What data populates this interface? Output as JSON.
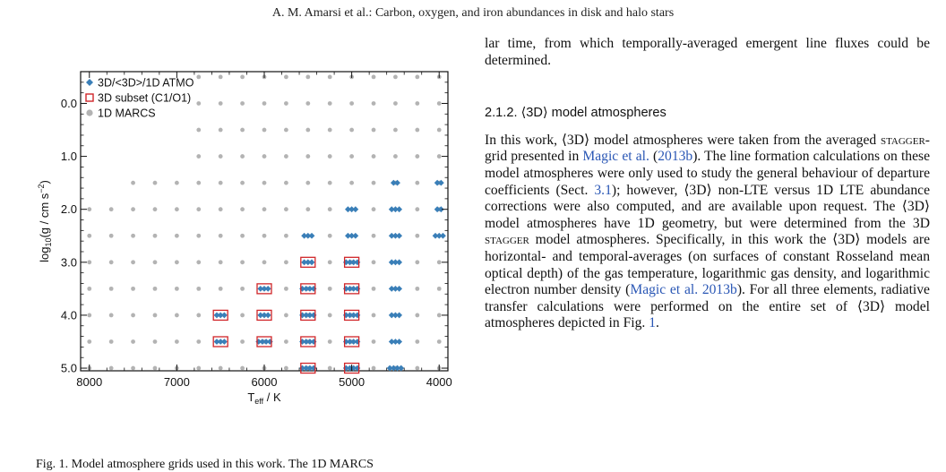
{
  "header": {
    "running_title": "A. M. Amarsi et al.: Carbon, oxygen, and iron abundances in disk and halo stars"
  },
  "colors": {
    "atmo": "#3a7fb8",
    "subset": "#d0262a",
    "marcs": "#b3b3b3"
  },
  "figure": {
    "caption_fragment": "Fig. 1. Model atmosphere grids used in this work. The 1D MARCS"
  },
  "chart_data": {
    "type": "scatter",
    "xlabel": "Teff / K",
    "ylabel": "log10(g / cm s^-2)",
    "xlim": [
      8100,
      3900
    ],
    "ylim": [
      5.05,
      -0.6
    ],
    "x_reversed": true,
    "y_reversed": true,
    "x_ticks": [
      8000,
      7000,
      6000,
      5000,
      4000
    ],
    "y_ticks": [
      0.0,
      1.0,
      2.0,
      3.0,
      4.0,
      5.0
    ],
    "x_tick_labels": [
      "8000",
      "7000",
      "6000",
      "5000",
      "4000"
    ],
    "y_tick_labels": [
      "0.0",
      "1.0",
      "2.0",
      "3.0",
      "4.0",
      "5.0"
    ],
    "legend_position": "top-left",
    "legend": [
      {
        "label": "3D/<3D>/1D ATMO",
        "marker": "diamond"
      },
      {
        "label": "3D subset (C1/O1)",
        "marker": "square"
      },
      {
        "label": "1D MARCS",
        "marker": "circle"
      }
    ],
    "series": [
      {
        "name": "1D MARCS",
        "teff_grid": [
          8000,
          7750,
          7500,
          7250,
          7000,
          6750,
          6500,
          6250,
          6000,
          5750,
          5500,
          5250,
          5000,
          4750,
          4500,
          4250,
          4000
        ],
        "logg_grid": [
          -0.5,
          0.0,
          0.5,
          1.0,
          1.5,
          2.0,
          2.5,
          3.0,
          3.5,
          4.0,
          4.5,
          5.0
        ],
        "teff_max_by_logg": [
          6750,
          6750,
          6750,
          6750,
          7500,
          8000,
          8000,
          8000,
          8000,
          8000,
          8000,
          8000
        ]
      },
      {
        "name": "3D/<3D>/1D ATMO",
        "groups": [
          {
            "teff": 6500,
            "logg": 4.0,
            "n": 3
          },
          {
            "teff": 6500,
            "logg": 4.5,
            "n": 3
          },
          {
            "teff": 6000,
            "logg": 3.5,
            "n": 3
          },
          {
            "teff": 6000,
            "logg": 4.0,
            "n": 3
          },
          {
            "teff": 6000,
            "logg": 4.5,
            "n": 4
          },
          {
            "teff": 5500,
            "logg": 2.5,
            "n": 3
          },
          {
            "teff": 5500,
            "logg": 3.0,
            "n": 3
          },
          {
            "teff": 5500,
            "logg": 3.5,
            "n": 4
          },
          {
            "teff": 5500,
            "logg": 4.0,
            "n": 4
          },
          {
            "teff": 5500,
            "logg": 4.5,
            "n": 4
          },
          {
            "teff": 5500,
            "logg": 5.0,
            "n": 4
          },
          {
            "teff": 5000,
            "logg": 2.0,
            "n": 3
          },
          {
            "teff": 5000,
            "logg": 2.5,
            "n": 3
          },
          {
            "teff": 5000,
            "logg": 3.0,
            "n": 4
          },
          {
            "teff": 5000,
            "logg": 3.5,
            "n": 4
          },
          {
            "teff": 5000,
            "logg": 4.0,
            "n": 4
          },
          {
            "teff": 5000,
            "logg": 4.5,
            "n": 4
          },
          {
            "teff": 5000,
            "logg": 5.0,
            "n": 4
          },
          {
            "teff": 4500,
            "logg": 1.5,
            "n": 2
          },
          {
            "teff": 4500,
            "logg": 2.0,
            "n": 3
          },
          {
            "teff": 4500,
            "logg": 2.5,
            "n": 3
          },
          {
            "teff": 4500,
            "logg": 3.0,
            "n": 3
          },
          {
            "teff": 4500,
            "logg": 3.5,
            "n": 3
          },
          {
            "teff": 4500,
            "logg": 4.0,
            "n": 3
          },
          {
            "teff": 4500,
            "logg": 4.5,
            "n": 3
          },
          {
            "teff": 4500,
            "logg": 5.0,
            "n": 4
          },
          {
            "teff": 4000,
            "logg": 1.5,
            "n": 2
          },
          {
            "teff": 4000,
            "logg": 2.0,
            "n": 2
          },
          {
            "teff": 4000,
            "logg": 2.5,
            "n": 3
          }
        ]
      },
      {
        "name": "3D subset (C1/O1)",
        "points": [
          {
            "teff": 6500,
            "logg": 4.0
          },
          {
            "teff": 6500,
            "logg": 4.5
          },
          {
            "teff": 6000,
            "logg": 3.5
          },
          {
            "teff": 6000,
            "logg": 4.0
          },
          {
            "teff": 6000,
            "logg": 4.5
          },
          {
            "teff": 5500,
            "logg": 3.0
          },
          {
            "teff": 5500,
            "logg": 3.5
          },
          {
            "teff": 5500,
            "logg": 4.0
          },
          {
            "teff": 5500,
            "logg": 4.5
          },
          {
            "teff": 5500,
            "logg": 5.0
          },
          {
            "teff": 5000,
            "logg": 3.0
          },
          {
            "teff": 5000,
            "logg": 3.5
          },
          {
            "teff": 5000,
            "logg": 4.0
          },
          {
            "teff": 5000,
            "logg": 4.5
          },
          {
            "teff": 5000,
            "logg": 5.0
          }
        ]
      }
    ]
  },
  "text": {
    "para1": "lar time, from which temporally-averaged emergent line fluxes could be determined.",
    "subsection": "2.1.2. ⟨3D⟩ model atmospheres",
    "p2_a": "In this work, ⟨3D⟩ model atmospheres were taken from the averaged ",
    "p2_stagger": "stagger",
    "p2_b": "-grid presented in ",
    "p2_ref1": "Magic et al.",
    "p2_c": " (",
    "p2_ref1_year": "2013b",
    "p2_d": "). The line formation calculations on these model atmospheres were only used to study the general behaviour of departure coefficients (Sect. ",
    "p2_sect": "3.1",
    "p2_e": "); however, ⟨3D⟩ non-LTE versus 1D LTE abundance corrections were also computed, and are available upon request. The ⟨3D⟩ model atmospheres have 1D geometry, but were determined from the 3D ",
    "p2_stagger2": "stagger",
    "p2_f": " model atmospheres. Specifically, in this work the ⟨3D⟩ models are horizontal- and temporal-averages (on surfaces of constant Rosseland mean optical depth) of the gas temperature, logarithmic gas density, and logarithmic electron number density (",
    "p2_ref2": "Magic et al. 2013b",
    "p2_g": "). For all three elements, radiative transfer calculations were performed on the entire set of ⟨3D⟩ model atmospheres depicted in Fig. ",
    "p2_fig": "1",
    "p2_h": "."
  }
}
